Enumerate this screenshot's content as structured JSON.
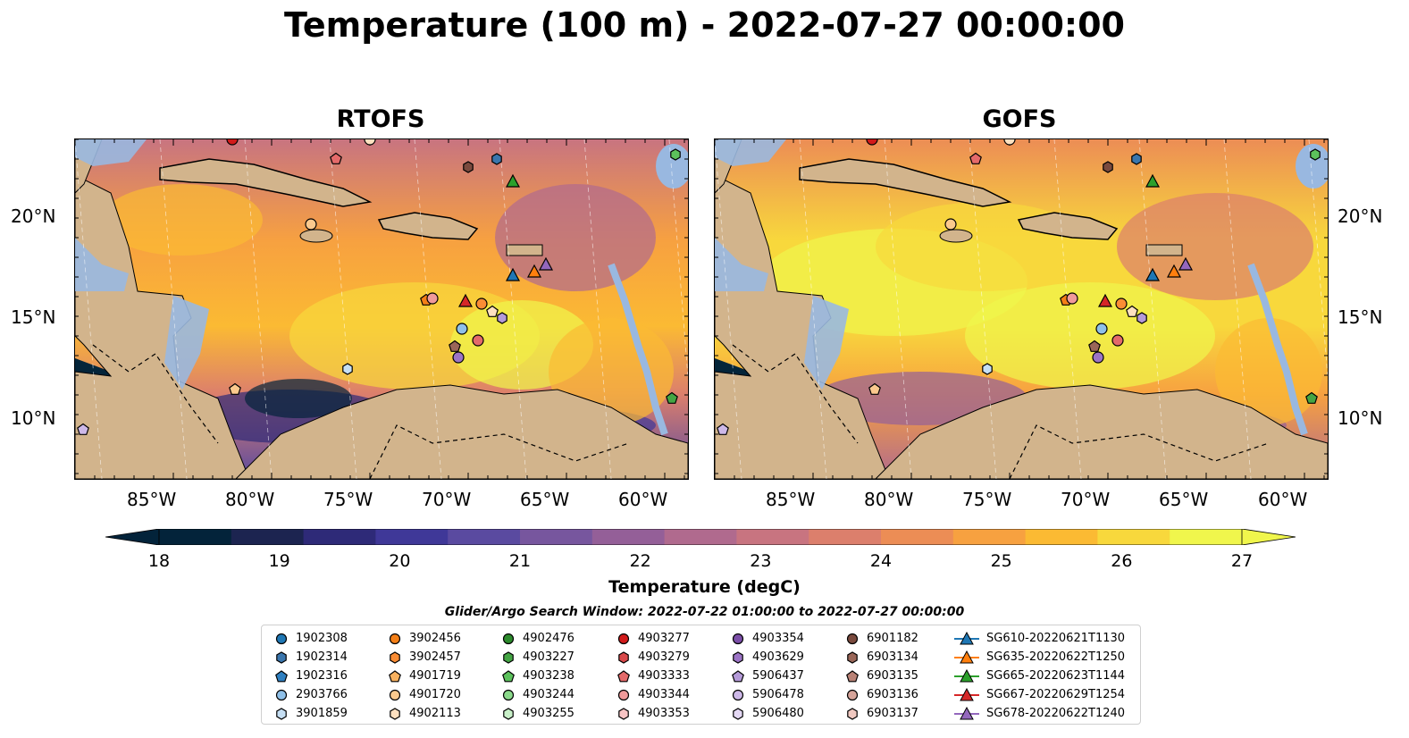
{
  "title": "Temperature (100 m) - 2022-07-27 00:00:00",
  "panels": [
    {
      "title": "RTOFS"
    },
    {
      "title": "GOFS"
    }
  ],
  "axes": {
    "lon_labels": [
      "85°W",
      "80°W",
      "75°W",
      "70°W",
      "65°W",
      "60°W"
    ],
    "lat_labels": [
      "20°N",
      "15°N",
      "10°N"
    ]
  },
  "colorbar": {
    "label": "Temperature (degC)",
    "ticks": [
      "18",
      "19",
      "20",
      "21",
      "22",
      "23",
      "24",
      "25",
      "26",
      "27"
    ],
    "range": [
      18,
      27
    ],
    "extend": "both"
  },
  "search_window": "Glider/Argo Search Window: 2022-07-22 01:00:00 to 2022-07-27 00:00:00",
  "legend": [
    [
      "1902308",
      "1902314",
      "1902316",
      "2903766",
      "3901859"
    ],
    [
      "3902456",
      "3902457",
      "4901719",
      "4901720",
      "4902113"
    ],
    [
      "4902476",
      "4903227",
      "4903238",
      "4903244",
      "4903255"
    ],
    [
      "4903277",
      "4903279",
      "4903333",
      "4903344",
      "4903353"
    ],
    [
      "4903354",
      "4903629",
      "5906437",
      "5906478",
      "5906480"
    ],
    [
      "6901182",
      "6903134",
      "6903135",
      "6903136",
      "6903137"
    ],
    [
      "SG610-20220621T1130",
      "SG635-20220622T1250",
      "SG665-20220623T1144",
      "SG667-20220629T1254",
      "SG678-20220622T1240"
    ]
  ],
  "legend_colors": [
    [
      "#1f77b4",
      "#3a76ad",
      "#2e7fc0",
      "#8fc0e8",
      "#c6dff4"
    ],
    [
      "#f47f17",
      "#fb8d35",
      "#f8b15f",
      "#fbc98d",
      "#fde0c0"
    ],
    [
      "#2c8a2c",
      "#44a544",
      "#5cc15c",
      "#8ad98a",
      "#c8f0c8"
    ],
    [
      "#d11a1a",
      "#d8494a",
      "#e46a6a",
      "#f09a9a",
      "#f8c4c4"
    ],
    [
      "#7b4ea8",
      "#9c74c6",
      "#b49ad8",
      "#cdb8e8",
      "#e4d8f4"
    ],
    [
      "#7a4a3e",
      "#9a6658",
      "#b98276",
      "#d6a49a",
      "#f0c8c0"
    ],
    [
      "#1f77b4",
      "#ff7f0e",
      "#2ca02c",
      "#d62728",
      "#9467bd"
    ]
  ],
  "legend_shapes": [
    "circle",
    "hexagon",
    "pentagon",
    "circle",
    "hexagon"
  ],
  "colors": {
    "land": "#d2b48c",
    "shelf": "#99b8e0",
    "colormap": [
      "#03233a",
      "#1c2450",
      "#2e2a78",
      "#3f3898",
      "#5a4aa0",
      "#77569e",
      "#945f98",
      "#b06a8e",
      "#c87480",
      "#dc7f6c",
      "#ec8d55",
      "#f7a140",
      "#fbba33",
      "#f8d83c",
      "#f0f64c"
    ]
  }
}
